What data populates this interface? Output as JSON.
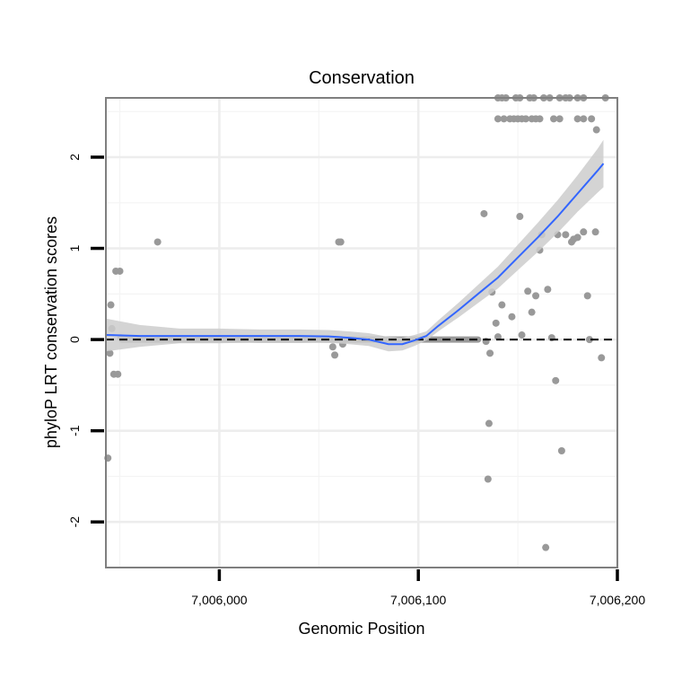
{
  "chart_data": {
    "type": "scatter",
    "title": "Conservation",
    "xlabel": "Genomic Position",
    "ylabel": "phyloP LRT conservation scores",
    "xlim": [
      7005943,
      7006200
    ],
    "ylim": [
      -2.5,
      2.65
    ],
    "x_ticks": [
      {
        "value": 7006000,
        "label": "7,006,000"
      },
      {
        "value": 7006100,
        "label": "7,006,100"
      },
      {
        "value": 7006200,
        "label": "7,006,200"
      }
    ],
    "y_ticks": [
      {
        "value": -2,
        "label": "-2"
      },
      {
        "value": -1,
        "label": "-1"
      },
      {
        "value": 0,
        "label": "0"
      },
      {
        "value": 1,
        "label": "1"
      },
      {
        "value": 2,
        "label": "2"
      }
    ],
    "x_minor_grid": [
      7005950,
      7006050,
      7006150
    ],
    "y_minor_grid": [
      -2.5,
      -1.5,
      -0.5,
      0.5,
      1.5,
      2.5
    ],
    "grid": true,
    "reference_line": {
      "y": 0,
      "style": "dashed",
      "color": "#000000"
    },
    "point_color": "#999999",
    "smooth_color": "#3366ff",
    "ribbon_color": "#cccccc",
    "points": [
      [
        7005944,
        -1.3
      ],
      [
        7005945,
        -0.15
      ],
      [
        7005945.5,
        0.38
      ],
      [
        7005946,
        0.12
      ],
      [
        7005947,
        -0.38
      ],
      [
        7005948,
        0.75
      ],
      [
        7005949,
        -0.38
      ],
      [
        7005950,
        0.75
      ],
      [
        7005950.5,
        0.02
      ],
      [
        7005969,
        1.07
      ],
      [
        7006057,
        -0.08
      ],
      [
        7006058,
        -0.17
      ],
      [
        7006060,
        1.07
      ],
      [
        7006061,
        1.07
      ],
      [
        7006062,
        -0.05
      ],
      [
        7006133,
        1.38
      ],
      [
        7006134,
        -0.02
      ],
      [
        7006135,
        -1.53
      ],
      [
        7006135.5,
        -0.92
      ],
      [
        7006136,
        -0.15
      ],
      [
        7006137,
        0.52
      ],
      [
        7006139,
        0.18
      ],
      [
        7006140,
        0.03
      ],
      [
        7006142,
        0.38
      ],
      [
        7006147,
        0.25
      ],
      [
        7006151,
        1.35
      ],
      [
        7006152,
        0.05
      ],
      [
        7006155,
        0.53
      ],
      [
        7006157,
        0.3
      ],
      [
        7006159,
        0.48
      ],
      [
        7006161,
        0.98
      ],
      [
        7006162,
        1.15
      ],
      [
        7006164,
        -2.28
      ],
      [
        7006165,
        0.55
      ],
      [
        7006167,
        0.02
      ],
      [
        7006169,
        -0.45
      ],
      [
        7006170,
        1.15
      ],
      [
        7006172,
        -1.22
      ],
      [
        7006174,
        1.15
      ],
      [
        7006177,
        1.07
      ],
      [
        7006178,
        1.1
      ],
      [
        7006180,
        1.12
      ],
      [
        7006183,
        1.18
      ],
      [
        7006185,
        0.48
      ],
      [
        7006186,
        0.0
      ],
      [
        7006189,
        1.18
      ],
      [
        7006189.5,
        2.3
      ],
      [
        7006192,
        -0.2
      ],
      [
        7006194,
        2.65
      ],
      [
        7006140,
        2.65
      ],
      [
        7006142,
        2.65
      ],
      [
        7006144,
        2.65
      ],
      [
        7006149,
        2.65
      ],
      [
        7006151,
        2.65
      ],
      [
        7006156,
        2.65
      ],
      [
        7006158,
        2.65
      ],
      [
        7006163,
        2.65
      ],
      [
        7006166,
        2.65
      ],
      [
        7006171,
        2.65
      ],
      [
        7006174,
        2.65
      ],
      [
        7006176,
        2.65
      ],
      [
        7006180,
        2.65
      ],
      [
        7006183,
        2.65
      ],
      [
        7006140,
        2.42
      ],
      [
        7006143,
        2.42
      ],
      [
        7006146,
        2.42
      ],
      [
        7006148,
        2.42
      ],
      [
        7006150,
        2.42
      ],
      [
        7006152,
        2.42
      ],
      [
        7006154,
        2.42
      ],
      [
        7006157,
        2.42
      ],
      [
        7006159,
        2.42
      ],
      [
        7006161,
        2.42
      ],
      [
        7006168,
        2.42
      ],
      [
        7006171,
        2.42
      ],
      [
        7006180,
        2.42
      ],
      [
        7006183,
        2.42
      ],
      [
        7006187,
        2.42
      ]
    ],
    "zero_band": {
      "x_start": 7005951,
      "x_end": 7006130,
      "y": 0.0
    },
    "smooth": [
      [
        7005943,
        0.05
      ],
      [
        7005960,
        0.04
      ],
      [
        7005980,
        0.04
      ],
      [
        7006000,
        0.04
      ],
      [
        7006020,
        0.04
      ],
      [
        7006040,
        0.04
      ],
      [
        7006055,
        0.035
      ],
      [
        7006065,
        0.02
      ],
      [
        7006075,
        0.0
      ],
      [
        7006085,
        -0.05
      ],
      [
        7006092,
        -0.05
      ],
      [
        7006098,
        -0.01
      ],
      [
        7006104,
        0.04
      ],
      [
        7006110,
        0.15
      ],
      [
        7006120,
        0.32
      ],
      [
        7006130,
        0.5
      ],
      [
        7006140,
        0.68
      ],
      [
        7006150,
        0.9
      ],
      [
        7006160,
        1.12
      ],
      [
        7006170,
        1.35
      ],
      [
        7006180,
        1.6
      ],
      [
        7006190,
        1.85
      ],
      [
        7006193,
        1.93
      ]
    ],
    "ribbon_halfwidth": [
      0.18,
      0.12,
      0.08,
      0.08,
      0.07,
      0.07,
      0.07,
      0.07,
      0.07,
      0.08,
      0.07,
      0.06,
      0.05,
      0.06,
      0.08,
      0.1,
      0.12,
      0.14,
      0.16,
      0.18,
      0.2,
      0.24,
      0.26
    ]
  }
}
